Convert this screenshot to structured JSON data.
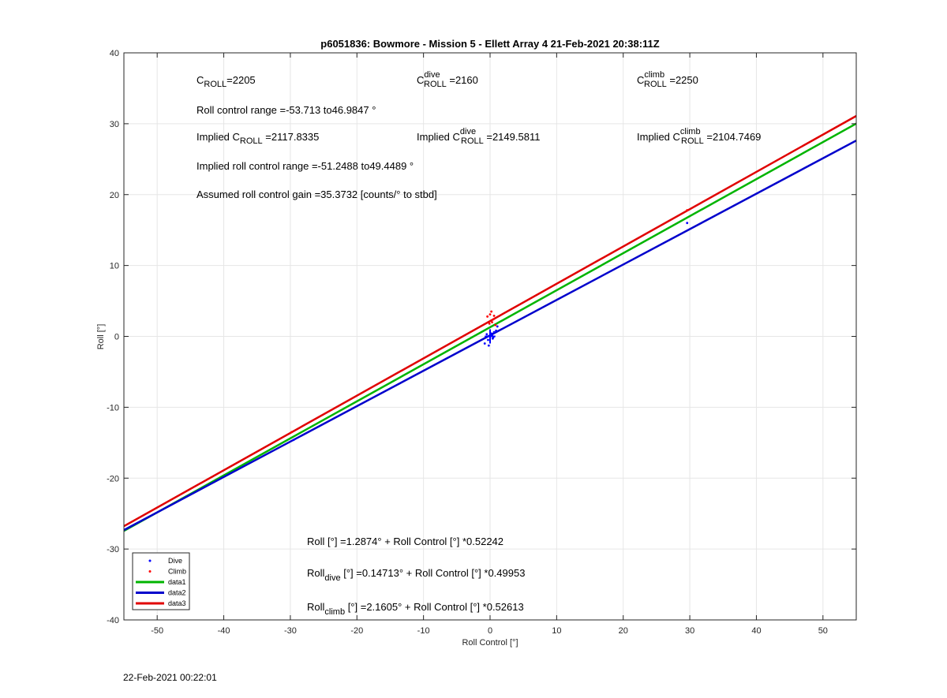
{
  "chart_data": {
    "type": "scatter",
    "title": "p6051836: Bowmore - Mission 5 - Ellett Array 4 21-Feb-2021 20:38:11Z",
    "xlabel": "Roll Control [°]",
    "ylabel": "Roll [°]",
    "xlim": [
      -55,
      55
    ],
    "ylim": [
      -40,
      40
    ],
    "xticks": [
      -50,
      -40,
      -30,
      -20,
      -10,
      0,
      10,
      20,
      30,
      40,
      50
    ],
    "yticks": [
      -40,
      -30,
      -20,
      -10,
      0,
      10,
      20,
      30,
      40
    ],
    "grid": true,
    "legend_position": "bottom-left",
    "series": [
      {
        "name": "Dive",
        "kind": "points",
        "color": "#0000ff",
        "x": [
          -29.5,
          -0.8,
          -0.5,
          -0.3,
          0.0,
          0.2,
          0.4,
          0.6,
          0.9,
          1.1,
          -0.2,
          0.3,
          0.5,
          29.6
        ],
        "y": [
          -14.6,
          -1.0,
          0.3,
          -0.5,
          0.0,
          0.4,
          -0.3,
          0.6,
          0.8,
          1.4,
          -1.3,
          0.2,
          -0.1,
          16.0
        ]
      },
      {
        "name": "Climb",
        "kind": "points",
        "color": "#ff0000",
        "x": [
          -29.8,
          -0.4,
          0.0,
          0.3,
          0.5,
          0.8,
          0.2,
          -0.1,
          0.6,
          29.6
        ],
        "y": [
          -13.5,
          2.8,
          3.1,
          2.0,
          2.4,
          1.6,
          3.5,
          1.8,
          2.9,
          17.8
        ]
      },
      {
        "name": "data1",
        "kind": "line",
        "color": "#00b400",
        "x": [
          -55,
          55
        ],
        "y": [
          -27.446,
          30.02
        ]
      },
      {
        "name": "data2",
        "kind": "line",
        "color": "#0000cc",
        "x": [
          -55,
          55
        ],
        "y": [
          -27.327,
          27.621
        ]
      },
      {
        "name": "data3",
        "kind": "line",
        "color": "#e00000",
        "x": [
          -55,
          55
        ],
        "y": [
          -26.777,
          31.098
        ]
      }
    ]
  },
  "annotations": {
    "c_roll": {
      "main": "C",
      "sub": "ROLL",
      "tail": "=2205"
    },
    "c_dive": {
      "main": "C",
      "sup": "dive",
      "sub": "ROLL",
      "tail": " =2160"
    },
    "c_climb": {
      "main": "C",
      "sup": "climb",
      "sub": "ROLL",
      "tail": " =2250"
    },
    "range": "Roll control range =-53.713 to46.9847 °",
    "implied": {
      "pre": "Implied C",
      "sub": "ROLL",
      "tail": " =2117.8335"
    },
    "implied_dive": {
      "pre": "Implied C",
      "sup": "dive",
      "sub": "ROLL",
      "tail": " =2149.5811"
    },
    "implied_climb": {
      "pre": "Implied C",
      "sup": "climb",
      "sub": "ROLL",
      "tail": " =2104.7469"
    },
    "implied_range": "Implied roll control range =-51.2488 to49.4489 °",
    "gain": "Assumed roll control gain =35.3732 [counts/° to stbd]",
    "fit_all": "Roll [°] =1.2874° + Roll Control [°] *0.52242",
    "fit_dive": {
      "pre": "Roll",
      "sub": "dive",
      "tail": " [°] =0.14713° + Roll Control [°] *0.49953"
    },
    "fit_climb": {
      "pre": "Roll",
      "sub": "climb",
      "tail": " [°] =2.1605° + Roll Control [°] *0.52613"
    }
  },
  "timestamp": "22-Feb-2021 00:22:01"
}
